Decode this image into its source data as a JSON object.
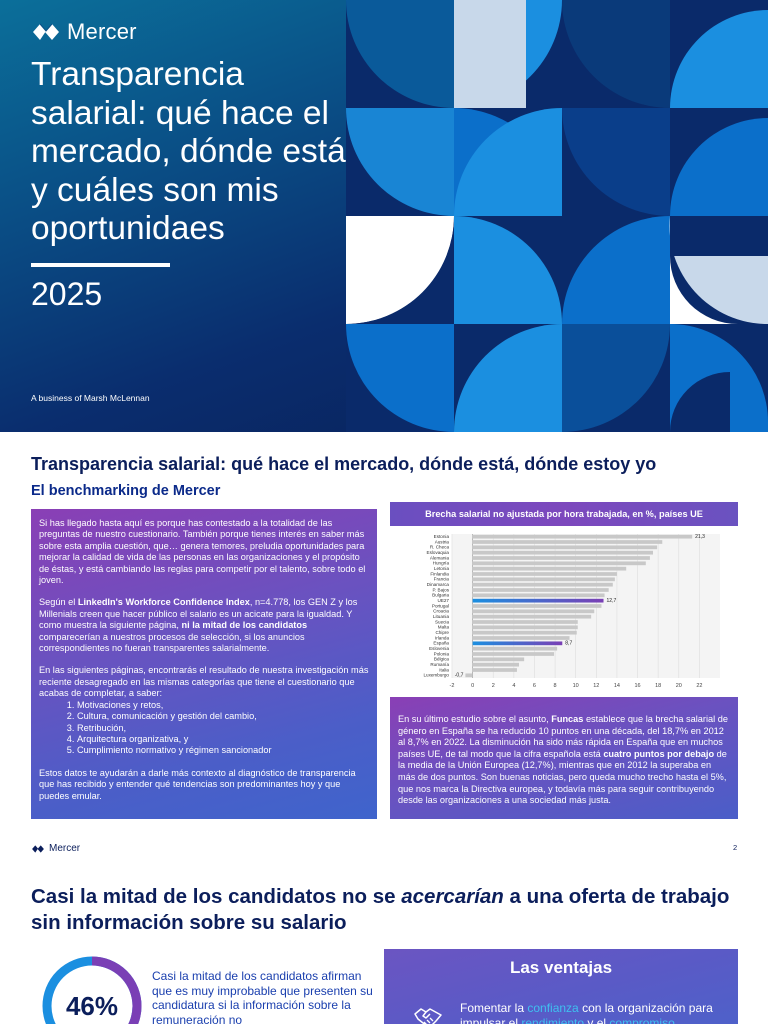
{
  "cover": {
    "brand": "Mercer",
    "title": "Transparencia salarial: qué hace el mercado, dónde está y cuáles son mis oportunidaes",
    "year": "2025",
    "business_line": "A business of Marsh McLennan",
    "colors": {
      "dark_navy": "#081f55",
      "blue": "#0a4f86",
      "teal": "#0b6f9a",
      "bright_blue": "#1b8fe0",
      "light_blue": "#c8d8ea"
    }
  },
  "page2": {
    "title": "Transparencia salarial: qué hace el mercado, dónde está, dónde estoy yo",
    "subtitle": "El benchmarking de Mercer",
    "left_box": {
      "p1": "Si has llegado hasta aquí es porque has contestado a la totalidad de las preguntas de nuestro cuestionario. También porque tienes interés en saber más sobre esta amplia cuestión, que… genera temores, preludia oportunidades para mejorar la calidad de vida de las personas en las organizaciones y el propósito de éstas, y está cambiando las reglas para competir por el talento, sobre todo el joven.",
      "p2_a": "Según el ",
      "p2_b": "LinkedIn's Workforce Confidence Index",
      "p2_c": ", n=4.778, los GEN Z y los Millenials creen que hacer público el salario es un acicate para la igualdad. Y como muestra la siguiente página, ",
      "p2_d": "ni la mitad de los candidatos",
      "p2_e": " comparecerían a nuestros procesos de selección, si los anuncios correspondientes no fueran transparentes salarialmente.",
      "p3": "En las siguientes páginas, encontrarás el resultado de nuestra investigación más reciente desagregado en las mismas categorías que tiene el cuestionario que acabas de completar, a saber:",
      "list": [
        "Motivaciones y retos,",
        "Cultura, comunicación y gestión del cambio,",
        "Retribución,",
        "Arquitectura organizativa, y",
        "Cumplimiento normativo y régimen sancionador"
      ],
      "p4": "Estos datos te ayudarán a darle más contexto al diagnóstico de transparencia que has recibido y entender qué tendencias son predominantes hoy y que puedes emular."
    },
    "chart_title": "Brecha salarial no ajustada por hora trabajada, en %, países UE",
    "right_box": {
      "a": "En su último estudio sobre el asunto, ",
      "b": "Funcas",
      "c": " establece que la brecha salarial de género en España se ha reducido 10 puntos en una década, del 18,7% en 2012 al 8,7% en 2022. La disminución ha sido más rápida en España que en muchos países UE, de tal modo que la cifra española está ",
      "d": "cuatro puntos por debajo",
      "e": " de la media de la Unión Europea (12,7%), mientras que en 2012 la superaba en más de dos puntos. Son buenas noticias, pero queda mucho trecho hasta el 5%, que nos marca la Directiva europea, y todavía más para seguir contribuyendo desde las organizaciones a una sociedad más justa."
    },
    "footer_brand": "Mercer",
    "page_number": "2"
  },
  "page3": {
    "heading_a": "Casi la mitad de los candidatos no se ",
    "heading_b": "acercarían",
    "heading_c": " a una oferta de trabajo sin información sobre su salario",
    "stat_value": "46%",
    "stat_fraction": 0.46,
    "stat_text": "Casi la mitad de los candidatos afirman que es muy improbable que presenten su candidatura si la información sobre la remuneración no",
    "ventajas_title": "Las ventajas",
    "ventajas_text_a": "Fomentar la ",
    "ventajas_text_b": "confianza",
    "ventajas_text_c": " con la organización para impulsar el ",
    "ventajas_text_d": "rendimiento",
    "ventajas_text_e": " y el ",
    "ventajas_text_f": "compromiso",
    "icon": "handshake-icon"
  },
  "chart_data": {
    "type": "bar",
    "orientation": "horizontal",
    "title": "Brecha salarial no ajustada por hora trabajada, en %, países UE",
    "categories": [
      "Estonia",
      "Austria",
      "R. Checa",
      "Eslovaquia",
      "Alemania",
      "Hungría",
      "Letonia",
      "Finlandia",
      "Francia",
      "Dinamarca",
      "P. Bajos",
      "Bulgaria",
      "UE27",
      "Portugal",
      "Croacia",
      "Lituania",
      "Suecia",
      "Malta",
      "Chipre",
      "Irlanda",
      "España",
      "Eslovenia",
      "Polonia",
      "Bélgica",
      "Rumanía",
      "Italia",
      "Luxemburgo"
    ],
    "values": [
      21.3,
      18.4,
      17.9,
      17.5,
      17.2,
      16.8,
      14.9,
      14.0,
      13.8,
      13.6,
      13.2,
      12.8,
      12.7,
      12.5,
      11.8,
      11.5,
      10.2,
      10.2,
      10.1,
      9.4,
      8.7,
      8.2,
      7.9,
      5.0,
      4.5,
      4.3,
      -0.7
    ],
    "data_labels": {
      "Estonia": "21,3",
      "UE27": "12,7",
      "España": "8,7",
      "Luxemburgo": "-0,7"
    },
    "highlight": [
      "UE27",
      "España"
    ],
    "xlim": [
      -2,
      24
    ],
    "xticks": [
      "-2",
      "0",
      "2",
      "4",
      "6",
      "8",
      "10",
      "12",
      "14",
      "16",
      "18",
      "20",
      "22"
    ],
    "colors": {
      "bar": "#c8c8c8",
      "highlight": "#1b8fe0",
      "highlight_alt": "#7a3fb5"
    },
    "grid": true
  }
}
